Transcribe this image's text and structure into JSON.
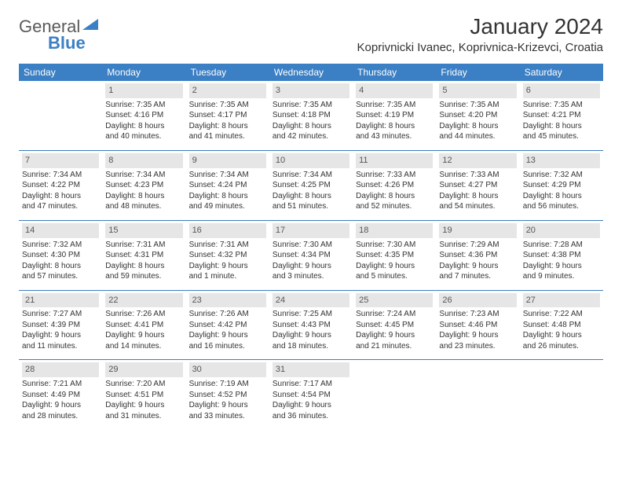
{
  "brand": {
    "part1": "General",
    "part2": "Blue"
  },
  "title": "January 2024",
  "location": "Koprivnicki Ivanec, Koprivnica-Krizevci, Croatia",
  "colors": {
    "header_bg": "#3b7fc4",
    "header_fg": "#ffffff",
    "daynum_bg": "#e6e6e6",
    "rule": "#3b7fc4",
    "text": "#333333"
  },
  "day_names": [
    "Sunday",
    "Monday",
    "Tuesday",
    "Wednesday",
    "Thursday",
    "Friday",
    "Saturday"
  ],
  "weeks": [
    [
      {
        "n": "",
        "sr": "",
        "ss": "",
        "dl1": "",
        "dl2": ""
      },
      {
        "n": "1",
        "sr": "Sunrise: 7:35 AM",
        "ss": "Sunset: 4:16 PM",
        "dl1": "Daylight: 8 hours",
        "dl2": "and 40 minutes."
      },
      {
        "n": "2",
        "sr": "Sunrise: 7:35 AM",
        "ss": "Sunset: 4:17 PM",
        "dl1": "Daylight: 8 hours",
        "dl2": "and 41 minutes."
      },
      {
        "n": "3",
        "sr": "Sunrise: 7:35 AM",
        "ss": "Sunset: 4:18 PM",
        "dl1": "Daylight: 8 hours",
        "dl2": "and 42 minutes."
      },
      {
        "n": "4",
        "sr": "Sunrise: 7:35 AM",
        "ss": "Sunset: 4:19 PM",
        "dl1": "Daylight: 8 hours",
        "dl2": "and 43 minutes."
      },
      {
        "n": "5",
        "sr": "Sunrise: 7:35 AM",
        "ss": "Sunset: 4:20 PM",
        "dl1": "Daylight: 8 hours",
        "dl2": "and 44 minutes."
      },
      {
        "n": "6",
        "sr": "Sunrise: 7:35 AM",
        "ss": "Sunset: 4:21 PM",
        "dl1": "Daylight: 8 hours",
        "dl2": "and 45 minutes."
      }
    ],
    [
      {
        "n": "7",
        "sr": "Sunrise: 7:34 AM",
        "ss": "Sunset: 4:22 PM",
        "dl1": "Daylight: 8 hours",
        "dl2": "and 47 minutes."
      },
      {
        "n": "8",
        "sr": "Sunrise: 7:34 AM",
        "ss": "Sunset: 4:23 PM",
        "dl1": "Daylight: 8 hours",
        "dl2": "and 48 minutes."
      },
      {
        "n": "9",
        "sr": "Sunrise: 7:34 AM",
        "ss": "Sunset: 4:24 PM",
        "dl1": "Daylight: 8 hours",
        "dl2": "and 49 minutes."
      },
      {
        "n": "10",
        "sr": "Sunrise: 7:34 AM",
        "ss": "Sunset: 4:25 PM",
        "dl1": "Daylight: 8 hours",
        "dl2": "and 51 minutes."
      },
      {
        "n": "11",
        "sr": "Sunrise: 7:33 AM",
        "ss": "Sunset: 4:26 PM",
        "dl1": "Daylight: 8 hours",
        "dl2": "and 52 minutes."
      },
      {
        "n": "12",
        "sr": "Sunrise: 7:33 AM",
        "ss": "Sunset: 4:27 PM",
        "dl1": "Daylight: 8 hours",
        "dl2": "and 54 minutes."
      },
      {
        "n": "13",
        "sr": "Sunrise: 7:32 AM",
        "ss": "Sunset: 4:29 PM",
        "dl1": "Daylight: 8 hours",
        "dl2": "and 56 minutes."
      }
    ],
    [
      {
        "n": "14",
        "sr": "Sunrise: 7:32 AM",
        "ss": "Sunset: 4:30 PM",
        "dl1": "Daylight: 8 hours",
        "dl2": "and 57 minutes."
      },
      {
        "n": "15",
        "sr": "Sunrise: 7:31 AM",
        "ss": "Sunset: 4:31 PM",
        "dl1": "Daylight: 8 hours",
        "dl2": "and 59 minutes."
      },
      {
        "n": "16",
        "sr": "Sunrise: 7:31 AM",
        "ss": "Sunset: 4:32 PM",
        "dl1": "Daylight: 9 hours",
        "dl2": "and 1 minute."
      },
      {
        "n": "17",
        "sr": "Sunrise: 7:30 AM",
        "ss": "Sunset: 4:34 PM",
        "dl1": "Daylight: 9 hours",
        "dl2": "and 3 minutes."
      },
      {
        "n": "18",
        "sr": "Sunrise: 7:30 AM",
        "ss": "Sunset: 4:35 PM",
        "dl1": "Daylight: 9 hours",
        "dl2": "and 5 minutes."
      },
      {
        "n": "19",
        "sr": "Sunrise: 7:29 AM",
        "ss": "Sunset: 4:36 PM",
        "dl1": "Daylight: 9 hours",
        "dl2": "and 7 minutes."
      },
      {
        "n": "20",
        "sr": "Sunrise: 7:28 AM",
        "ss": "Sunset: 4:38 PM",
        "dl1": "Daylight: 9 hours",
        "dl2": "and 9 minutes."
      }
    ],
    [
      {
        "n": "21",
        "sr": "Sunrise: 7:27 AM",
        "ss": "Sunset: 4:39 PM",
        "dl1": "Daylight: 9 hours",
        "dl2": "and 11 minutes."
      },
      {
        "n": "22",
        "sr": "Sunrise: 7:26 AM",
        "ss": "Sunset: 4:41 PM",
        "dl1": "Daylight: 9 hours",
        "dl2": "and 14 minutes."
      },
      {
        "n": "23",
        "sr": "Sunrise: 7:26 AM",
        "ss": "Sunset: 4:42 PM",
        "dl1": "Daylight: 9 hours",
        "dl2": "and 16 minutes."
      },
      {
        "n": "24",
        "sr": "Sunrise: 7:25 AM",
        "ss": "Sunset: 4:43 PM",
        "dl1": "Daylight: 9 hours",
        "dl2": "and 18 minutes."
      },
      {
        "n": "25",
        "sr": "Sunrise: 7:24 AM",
        "ss": "Sunset: 4:45 PM",
        "dl1": "Daylight: 9 hours",
        "dl2": "and 21 minutes."
      },
      {
        "n": "26",
        "sr": "Sunrise: 7:23 AM",
        "ss": "Sunset: 4:46 PM",
        "dl1": "Daylight: 9 hours",
        "dl2": "and 23 minutes."
      },
      {
        "n": "27",
        "sr": "Sunrise: 7:22 AM",
        "ss": "Sunset: 4:48 PM",
        "dl1": "Daylight: 9 hours",
        "dl2": "and 26 minutes."
      }
    ],
    [
      {
        "n": "28",
        "sr": "Sunrise: 7:21 AM",
        "ss": "Sunset: 4:49 PM",
        "dl1": "Daylight: 9 hours",
        "dl2": "and 28 minutes."
      },
      {
        "n": "29",
        "sr": "Sunrise: 7:20 AM",
        "ss": "Sunset: 4:51 PM",
        "dl1": "Daylight: 9 hours",
        "dl2": "and 31 minutes."
      },
      {
        "n": "30",
        "sr": "Sunrise: 7:19 AM",
        "ss": "Sunset: 4:52 PM",
        "dl1": "Daylight: 9 hours",
        "dl2": "and 33 minutes."
      },
      {
        "n": "31",
        "sr": "Sunrise: 7:17 AM",
        "ss": "Sunset: 4:54 PM",
        "dl1": "Daylight: 9 hours",
        "dl2": "and 36 minutes."
      },
      {
        "n": "",
        "sr": "",
        "ss": "",
        "dl1": "",
        "dl2": ""
      },
      {
        "n": "",
        "sr": "",
        "ss": "",
        "dl1": "",
        "dl2": ""
      },
      {
        "n": "",
        "sr": "",
        "ss": "",
        "dl1": "",
        "dl2": ""
      }
    ]
  ]
}
